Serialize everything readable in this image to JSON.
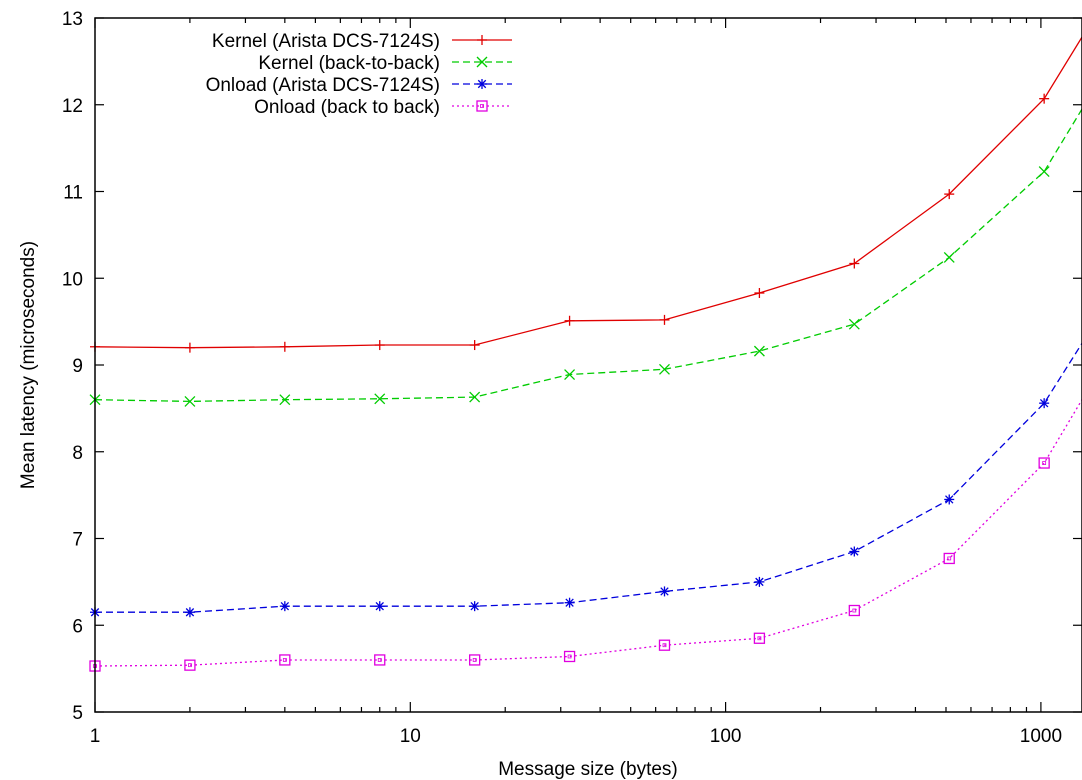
{
  "chart_data": {
    "type": "line",
    "title": "",
    "xlabel": "Message size (bytes)",
    "ylabel": "Mean latency (microseconds)",
    "x_scale": "log",
    "xlim": [
      1,
      1350
    ],
    "ylim": [
      5,
      13
    ],
    "x_ticks": [
      {
        "value": 1,
        "label": "1"
      },
      {
        "value": 10,
        "label": "10"
      },
      {
        "value": 100,
        "label": "100"
      },
      {
        "value": 1000,
        "label": "1000"
      }
    ],
    "y_ticks": [
      {
        "value": 5,
        "label": "5"
      },
      {
        "value": 6,
        "label": "6"
      },
      {
        "value": 7,
        "label": "7"
      },
      {
        "value": 8,
        "label": "8"
      },
      {
        "value": 9,
        "label": "9"
      },
      {
        "value": 10,
        "label": "10"
      },
      {
        "value": 11,
        "label": "11"
      },
      {
        "value": 12,
        "label": "12"
      },
      {
        "value": 13,
        "label": "13"
      }
    ],
    "grid": false,
    "legend_position": "top-left",
    "x": [
      1,
      2,
      4,
      8,
      16,
      32,
      64,
      128,
      256,
      512,
      1024
    ],
    "series": [
      {
        "name": "Kernel (Arista DCS-7124S)",
        "color": "#e00000",
        "line_style": "solid",
        "marker": "plus",
        "values": [
          9.21,
          9.2,
          9.21,
          9.23,
          9.23,
          9.51,
          9.52,
          9.83,
          10.17,
          10.97,
          12.07
        ],
        "end_value": 12.78
      },
      {
        "name": "Kernel (back-to-back)",
        "color": "#00cc00",
        "line_style": "dashed",
        "marker": "cross",
        "values": [
          8.6,
          8.58,
          8.6,
          8.61,
          8.63,
          8.89,
          8.95,
          9.16,
          9.47,
          10.24,
          11.23
        ],
        "end_value": 11.95
      },
      {
        "name": "Onload (Arista DCS-7124S)",
        "color": "#0000dd",
        "line_style": "dashed",
        "marker": "asterisk",
        "values": [
          6.15,
          6.15,
          6.22,
          6.22,
          6.22,
          6.26,
          6.39,
          6.5,
          6.85,
          7.45,
          8.56
        ],
        "end_value": 9.25
      },
      {
        "name": "Onload (back to back)",
        "color": "#e000e0",
        "line_style": "dotted",
        "marker": "square",
        "values": [
          5.53,
          5.54,
          5.6,
          5.6,
          5.6,
          5.64,
          5.77,
          5.85,
          6.17,
          6.77,
          7.87
        ],
        "end_value": 8.6
      }
    ]
  }
}
